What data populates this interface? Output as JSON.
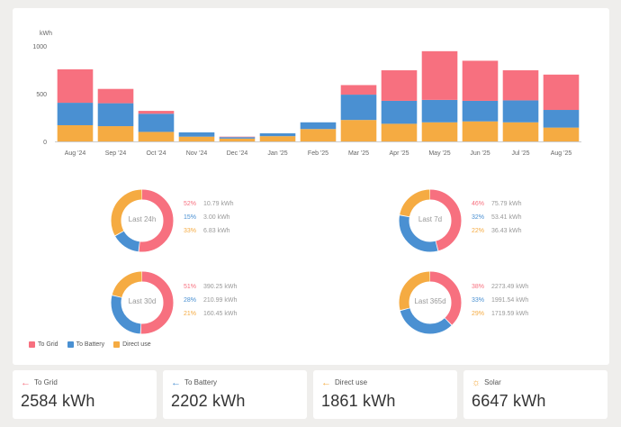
{
  "colors": {
    "grid": "#f7707f",
    "battery": "#4a90d2",
    "direct": "#f5ab42"
  },
  "chart_data": {
    "type": "bar",
    "stacked": true,
    "ylabel": "kWh",
    "ylim": [
      0,
      1000
    ],
    "yticks": [
      0,
      500,
      1000
    ],
    "grid": false,
    "categories": [
      "Aug '24",
      "Sep '24",
      "Oct '24",
      "Nov '24",
      "Dec '24",
      "Jan '25",
      "Feb '25",
      "Mar '25",
      "Apr '25",
      "May '25",
      "Jun '25",
      "Jul '25",
      "Aug '25"
    ],
    "series": [
      {
        "name": "Direct use",
        "color": "#f5ab42",
        "values": [
          170,
          160,
          100,
          50,
          30,
          55,
          130,
          225,
          185,
          200,
          210,
          200,
          145
        ]
      },
      {
        "name": "To Battery",
        "color": "#4a90d2",
        "values": [
          235,
          240,
          190,
          45,
          15,
          30,
          70,
          265,
          240,
          235,
          215,
          230,
          185
        ]
      },
      {
        "name": "To Grid",
        "color": "#f7707f",
        "values": [
          350,
          150,
          30,
          0,
          5,
          0,
          0,
          100,
          320,
          510,
          420,
          315,
          370
        ]
      }
    ]
  },
  "donuts": [
    {
      "label": "Last 24h",
      "rows": [
        {
          "pct": "52%",
          "value": "10.79 kWh",
          "frac": 0.52,
          "color": "#f7707f"
        },
        {
          "pct": "15%",
          "value": "3.00 kWh",
          "frac": 0.15,
          "color": "#4a90d2"
        },
        {
          "pct": "33%",
          "value": "6.83 kWh",
          "frac": 0.33,
          "color": "#f5ab42"
        }
      ]
    },
    {
      "label": "Last 7d",
      "rows": [
        {
          "pct": "46%",
          "value": "75.79 kWh",
          "frac": 0.46,
          "color": "#f7707f"
        },
        {
          "pct": "32%",
          "value": "53.41 kWh",
          "frac": 0.32,
          "color": "#4a90d2"
        },
        {
          "pct": "22%",
          "value": "36.43 kWh",
          "frac": 0.22,
          "color": "#f5ab42"
        }
      ]
    },
    {
      "label": "Last 30d",
      "rows": [
        {
          "pct": "51%",
          "value": "390.25 kWh",
          "frac": 0.51,
          "color": "#f7707f"
        },
        {
          "pct": "28%",
          "value": "210.99 kWh",
          "frac": 0.28,
          "color": "#4a90d2"
        },
        {
          "pct": "21%",
          "value": "160.45 kWh",
          "frac": 0.21,
          "color": "#f5ab42"
        }
      ]
    },
    {
      "label": "Last 365d",
      "rows": [
        {
          "pct": "38%",
          "value": "2273.49 kWh",
          "frac": 0.38,
          "color": "#f7707f"
        },
        {
          "pct": "33%",
          "value": "1991.54 kWh",
          "frac": 0.33,
          "color": "#4a90d2"
        },
        {
          "pct": "29%",
          "value": "1719.59 kWh",
          "frac": 0.29,
          "color": "#f5ab42"
        }
      ]
    }
  ],
  "legend": [
    {
      "label": "To Grid",
      "color": "#f7707f"
    },
    {
      "label": "To Battery",
      "color": "#4a90d2"
    },
    {
      "label": "Direct use",
      "color": "#f5ab42"
    }
  ],
  "cards": [
    {
      "title": "To Grid",
      "icon": "arrow-left-icon",
      "glyph": "←",
      "color": "#f7707f",
      "value": "2584",
      "unit": "kWh"
    },
    {
      "title": "To Battery",
      "icon": "arrow-left-icon",
      "glyph": "←",
      "color": "#4a90d2",
      "value": "2202",
      "unit": "kWh"
    },
    {
      "title": "Direct use",
      "icon": "arrow-left-icon",
      "glyph": "←",
      "color": "#f5ab42",
      "value": "1861",
      "unit": "kWh"
    },
    {
      "title": "Solar",
      "icon": "sun-icon",
      "glyph": "☼",
      "color": "#f5ab42",
      "value": "6647",
      "unit": "kWh"
    }
  ]
}
